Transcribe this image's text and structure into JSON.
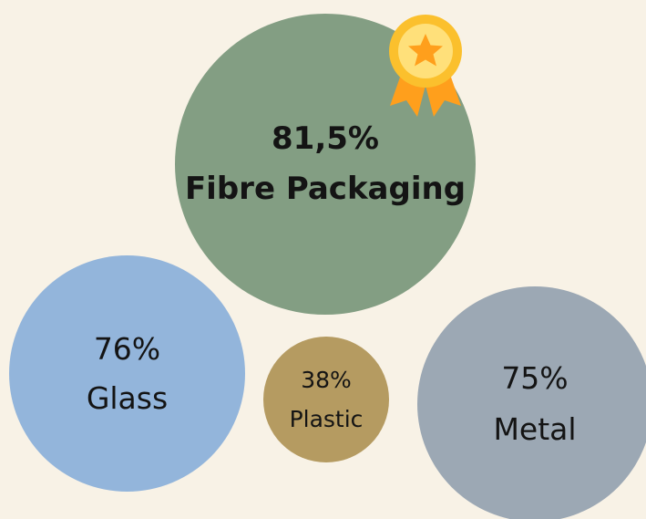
{
  "chart_data": {
    "type": "bubble",
    "unit": "%",
    "items": [
      {
        "id": "fibre",
        "pct_label": "81,5%",
        "label": "Fibre Packaging",
        "value": 81.5,
        "color": "#839e83",
        "emphasis": "bold",
        "badge": "award-ribbon"
      },
      {
        "id": "glass",
        "pct_label": "76%",
        "label": "Glass",
        "value": 76,
        "color": "#93b5db"
      },
      {
        "id": "plastic",
        "pct_label": "38%",
        "label": "Plastic",
        "value": 38,
        "color": "#b59b61"
      },
      {
        "id": "metal",
        "pct_label": "75%",
        "label": "Metal",
        "value": 75,
        "color": "#9ca8b4"
      }
    ]
  },
  "colors": {
    "background": "#f8f2e6",
    "award_gold": "#fbc02d",
    "award_star": "#ff9f1c",
    "award_ribbon": "#ff9f1c"
  }
}
